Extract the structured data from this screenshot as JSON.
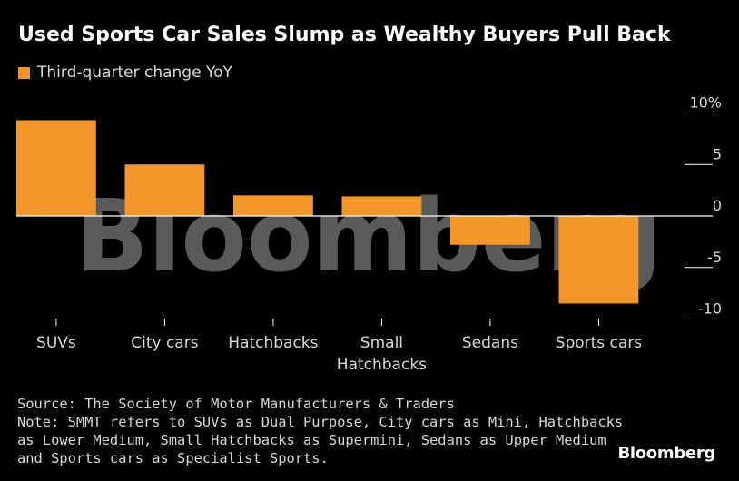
{
  "chart_data": {
    "type": "bar",
    "title": "Used Sports Car Sales Slump as Wealthy Buyers Pull Back",
    "series": [
      {
        "name": "Third-quarter change YoY",
        "values": [
          9.3,
          5.0,
          2.0,
          1.9,
          -2.8,
          -8.5
        ]
      }
    ],
    "categories": [
      "SUVs",
      "City cars",
      "Hatchbacks",
      "Small Hatchbacks",
      "Sedans",
      "Sports cars"
    ],
    "category_lines": [
      [
        "SUVs"
      ],
      [
        "City cars"
      ],
      [
        "Hatchbacks"
      ],
      [
        "Small",
        "Hatchbacks"
      ],
      [
        "Sedans"
      ],
      [
        "Sports cars"
      ]
    ],
    "ylim": [
      -10,
      10
    ],
    "yticks": [
      {
        "value": 10,
        "label": "10%"
      },
      {
        "value": 5,
        "label": "5"
      },
      {
        "value": 0,
        "label": "0"
      },
      {
        "value": -5,
        "label": "-5"
      },
      {
        "value": -10,
        "label": "-10"
      }
    ],
    "xlabel": "",
    "ylabel": "",
    "watermark": "Bloomberg",
    "axis_side": "right",
    "colors": {
      "bar": "#f0962a",
      "axis": "#ffffff",
      "watermark": "#5a5a5a",
      "background": "#000000"
    }
  },
  "footer": {
    "source": "Source: The Society of Motor Manufacturers & Traders",
    "note_lines": [
      "Note: SMMT refers to SUVs as Dual Purpose, City cars as Mini, Hatchbacks",
      "as Lower Medium, Small Hatchbacks as Supermini, Sedans as Upper Medium",
      "and Sports cars as Specialist Sports."
    ]
  },
  "brand": "Bloomberg"
}
